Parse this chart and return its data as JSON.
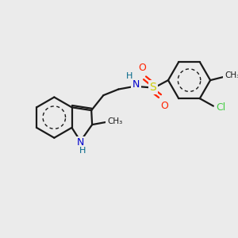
{
  "bg_color": "#ebebeb",
  "bond_color": "#1a1a1a",
  "bond_width": 1.6,
  "nitrogen_color": "#0000cc",
  "sulfur_color": "#cccc00",
  "oxygen_color": "#ff2200",
  "chlorine_color": "#44cc44",
  "hydrogen_color": "#006688",
  "carbon_color": "#1a1a1a",
  "figsize": [
    3.0,
    3.0
  ],
  "dpi": 100,
  "xlim": [
    0,
    300
  ],
  "ylim": [
    0,
    300
  ]
}
